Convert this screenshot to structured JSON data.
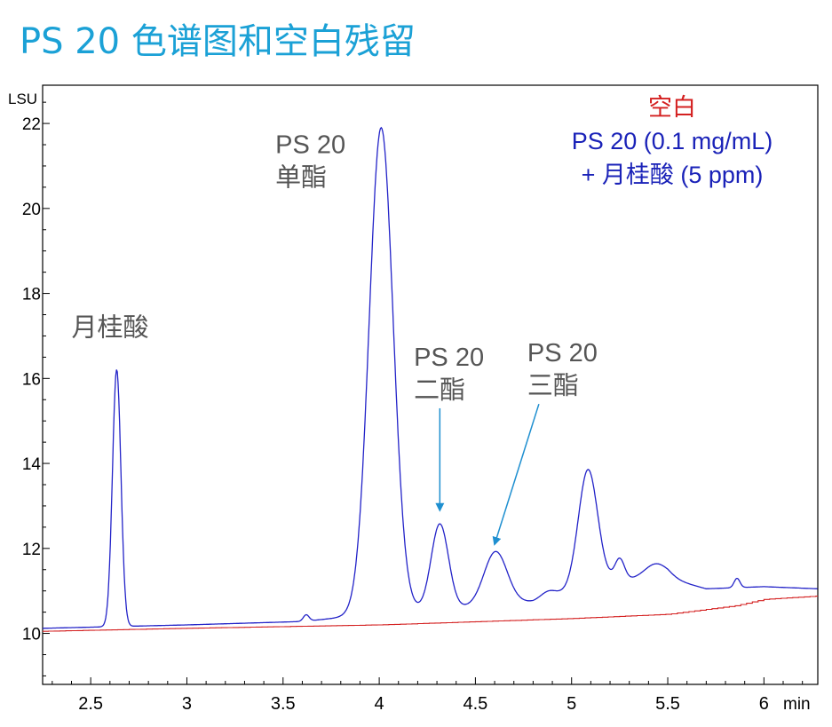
{
  "slide_title": "PS 20 色谱图和空白残留",
  "colors": {
    "title": "#1ba1d6",
    "sample_trace": "#2323c8",
    "blank_trace": "#d42020",
    "annotation_text": "#555555",
    "arrow": "#1e8fd0"
  },
  "chart_data": {
    "type": "line",
    "title": "",
    "xlabel": "min",
    "ylabel": "LSU",
    "xlim": [
      2.25,
      6.28
    ],
    "ylim": [
      8.8,
      22.9
    ],
    "xticks": [
      2.5,
      3,
      3.5,
      4,
      4.5,
      5,
      5.5,
      6
    ],
    "xtick_labels": [
      "2.5",
      "3",
      "3.5",
      "4",
      "4.5",
      "5",
      "5.5",
      "6"
    ],
    "yticks": [
      10,
      12,
      14,
      16,
      18,
      20,
      22
    ],
    "ytick_labels": [
      "10",
      "12",
      "14",
      "16",
      "18",
      "20",
      "22"
    ],
    "grid": false,
    "legend": {
      "placement": "top-right",
      "entries": [
        "空白",
        "PS 20 (0.1 mg/mL)",
        "+ 月桂酸 (5 ppm)"
      ]
    },
    "series": [
      {
        "name": "PS 20 (0.1 mg/mL) + 月桂酸 (5 ppm)",
        "color": "#2323c8",
        "baseline": [
          [
            2.25,
            10.12
          ],
          [
            3.0,
            10.2
          ],
          [
            3.6,
            10.28
          ],
          [
            3.75,
            10.35
          ],
          [
            4.0,
            10.5
          ],
          [
            4.4,
            10.6
          ],
          [
            4.8,
            10.75
          ],
          [
            5.0,
            11.0
          ],
          [
            5.2,
            11.25
          ],
          [
            5.5,
            11.3
          ],
          [
            5.7,
            11.05
          ],
          [
            6.0,
            11.1
          ],
          [
            6.28,
            11.05
          ]
        ],
        "peaks": [
          {
            "x": 2.635,
            "height": 6.05,
            "width": 0.022
          },
          {
            "x": 3.62,
            "height": 0.15,
            "width": 0.015
          },
          {
            "x": 4.01,
            "height": 11.4,
            "width": 0.062
          },
          {
            "x": 4.315,
            "height": 2.0,
            "width": 0.045
          },
          {
            "x": 4.605,
            "height": 1.25,
            "width": 0.06
          },
          {
            "x": 4.88,
            "height": 0.15,
            "width": 0.04
          },
          {
            "x": 5.085,
            "height": 2.75,
            "width": 0.05
          },
          {
            "x": 5.25,
            "height": 0.5,
            "width": 0.025
          },
          {
            "x": 5.44,
            "height": 0.35,
            "width": 0.06
          },
          {
            "x": 5.86,
            "height": 0.22,
            "width": 0.015
          }
        ]
      },
      {
        "name": "空白",
        "color": "#d42020",
        "points": [
          [
            2.25,
            10.05
          ],
          [
            3.0,
            10.12
          ],
          [
            4.0,
            10.2
          ],
          [
            5.0,
            10.35
          ],
          [
            5.5,
            10.45
          ],
          [
            5.85,
            10.65
          ],
          [
            6.0,
            10.8
          ],
          [
            6.28,
            10.88
          ]
        ]
      }
    ],
    "annotations": [
      {
        "text": [
          "月桂酸"
        ],
        "x": 2.4,
        "y": 17.0
      },
      {
        "text": [
          "PS 20",
          "单酯"
        ],
        "x": 3.46,
        "y": 21.3
      },
      {
        "text": [
          "PS 20",
          "二酯"
        ],
        "x": 4.18,
        "y": 16.3,
        "arrow_to": [
          4.315,
          12.9
        ]
      },
      {
        "text": [
          "PS 20",
          "三酯"
        ],
        "x": 4.77,
        "y": 16.4,
        "arrow_to": [
          4.6,
          12.1
        ]
      }
    ]
  }
}
